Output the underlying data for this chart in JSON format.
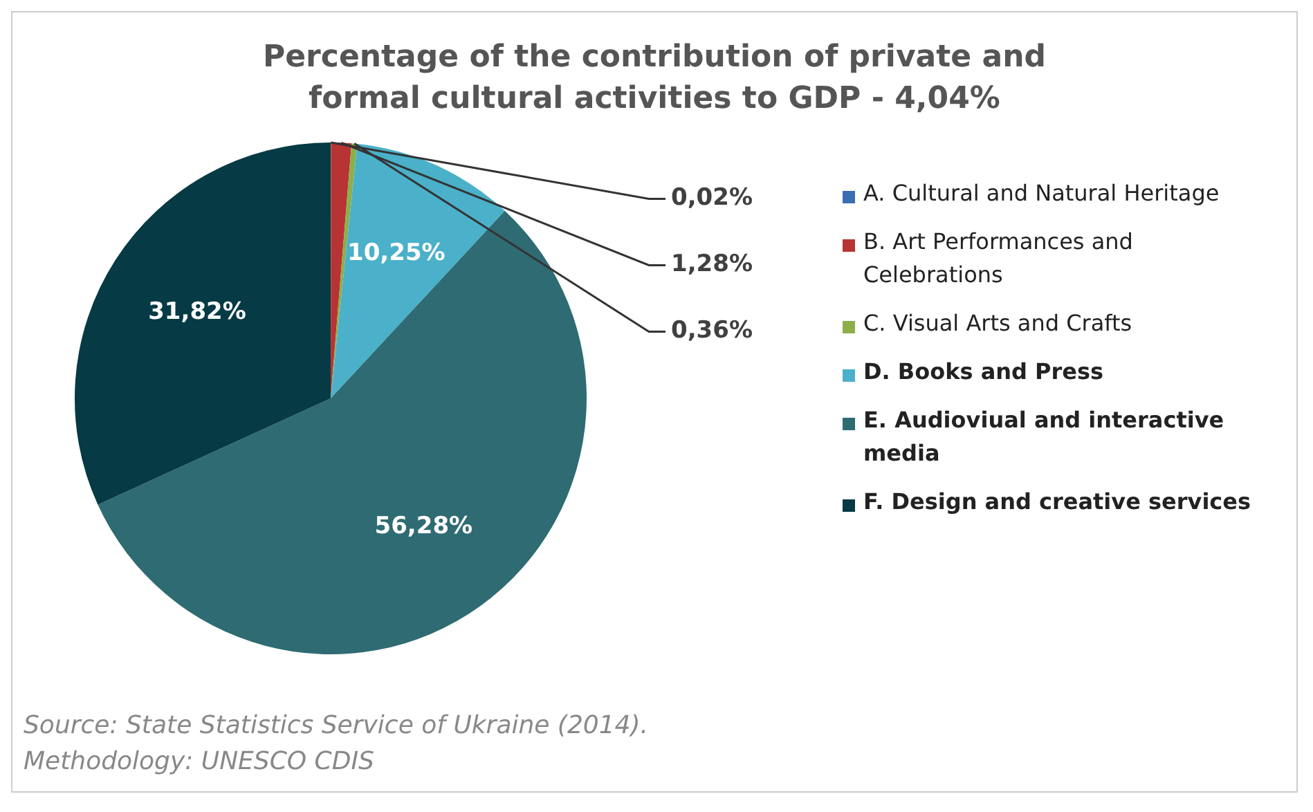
{
  "chart_data": {
    "type": "pie",
    "title": "Percentage of the contribution of private and formal cultural activities to GDP - 4,04%",
    "categories": [
      "A. Cultural and Natural Heritage",
      "B. Art Performances and Celebrations",
      "C. Visual Arts and Crafts",
      "D. Books and Press",
      "E. Audioviual and interactive media",
      "F. Design and creative services"
    ],
    "values": [
      0.02,
      1.28,
      0.36,
      10.25,
      56.28,
      31.82
    ],
    "colors": [
      "#3b6db3",
      "#b83333",
      "#8bb04a",
      "#4bb0c9",
      "#2f6b72",
      "#063a44"
    ],
    "value_labels": [
      "0,02%",
      "1,28%",
      "0,36%",
      "10,25%",
      "56,28%",
      "31,82%"
    ],
    "legend": "right",
    "annotations": [
      "Source: State Statistics Service of Ukraine (2014).",
      "Methodology: UNESCO CDIS"
    ]
  }
}
